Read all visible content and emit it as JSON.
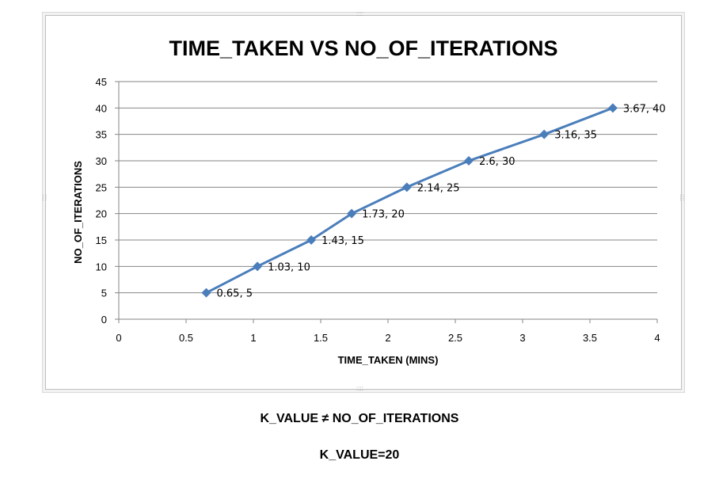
{
  "chart_data": {
    "type": "line",
    "title": "TIME_TAKEN VS NO_OF_ITERATIONS",
    "xlabel": "TIME_TAKEN (MINS)",
    "ylabel": "NO_OF_ITERATIONS",
    "xlim": [
      0,
      4
    ],
    "ylim": [
      0,
      45
    ],
    "xticks": [
      "0",
      "0.5",
      "1",
      "1.5",
      "2",
      "2.5",
      "3",
      "3.5",
      "4"
    ],
    "yticks": [
      "0",
      "5",
      "10",
      "15",
      "20",
      "25",
      "30",
      "35",
      "40",
      "45"
    ],
    "grid": "horizontal",
    "legend": "none",
    "series": [
      {
        "x": [
          0.65,
          1.03,
          1.43,
          1.73,
          2.14,
          2.6,
          3.16,
          3.67
        ],
        "y": [
          5,
          10,
          15,
          20,
          25,
          30,
          35,
          40
        ],
        "labels": [
          "0.65, 5",
          "1.03, 10",
          "1.43, 15",
          "1.73, 20",
          "2.14, 25",
          "2.6, 30",
          "3.16, 35",
          "3.67, 40"
        ],
        "color": "#4a7ebb",
        "marker": "diamond"
      }
    ]
  },
  "captions": {
    "line1": "K_VALUE ≠ NO_OF_ITERATIONS",
    "line2": "K_VALUE=20"
  },
  "colors": {
    "series": "#4a7ebb",
    "gridline": "#868686",
    "frame": "#bfbfbf"
  }
}
